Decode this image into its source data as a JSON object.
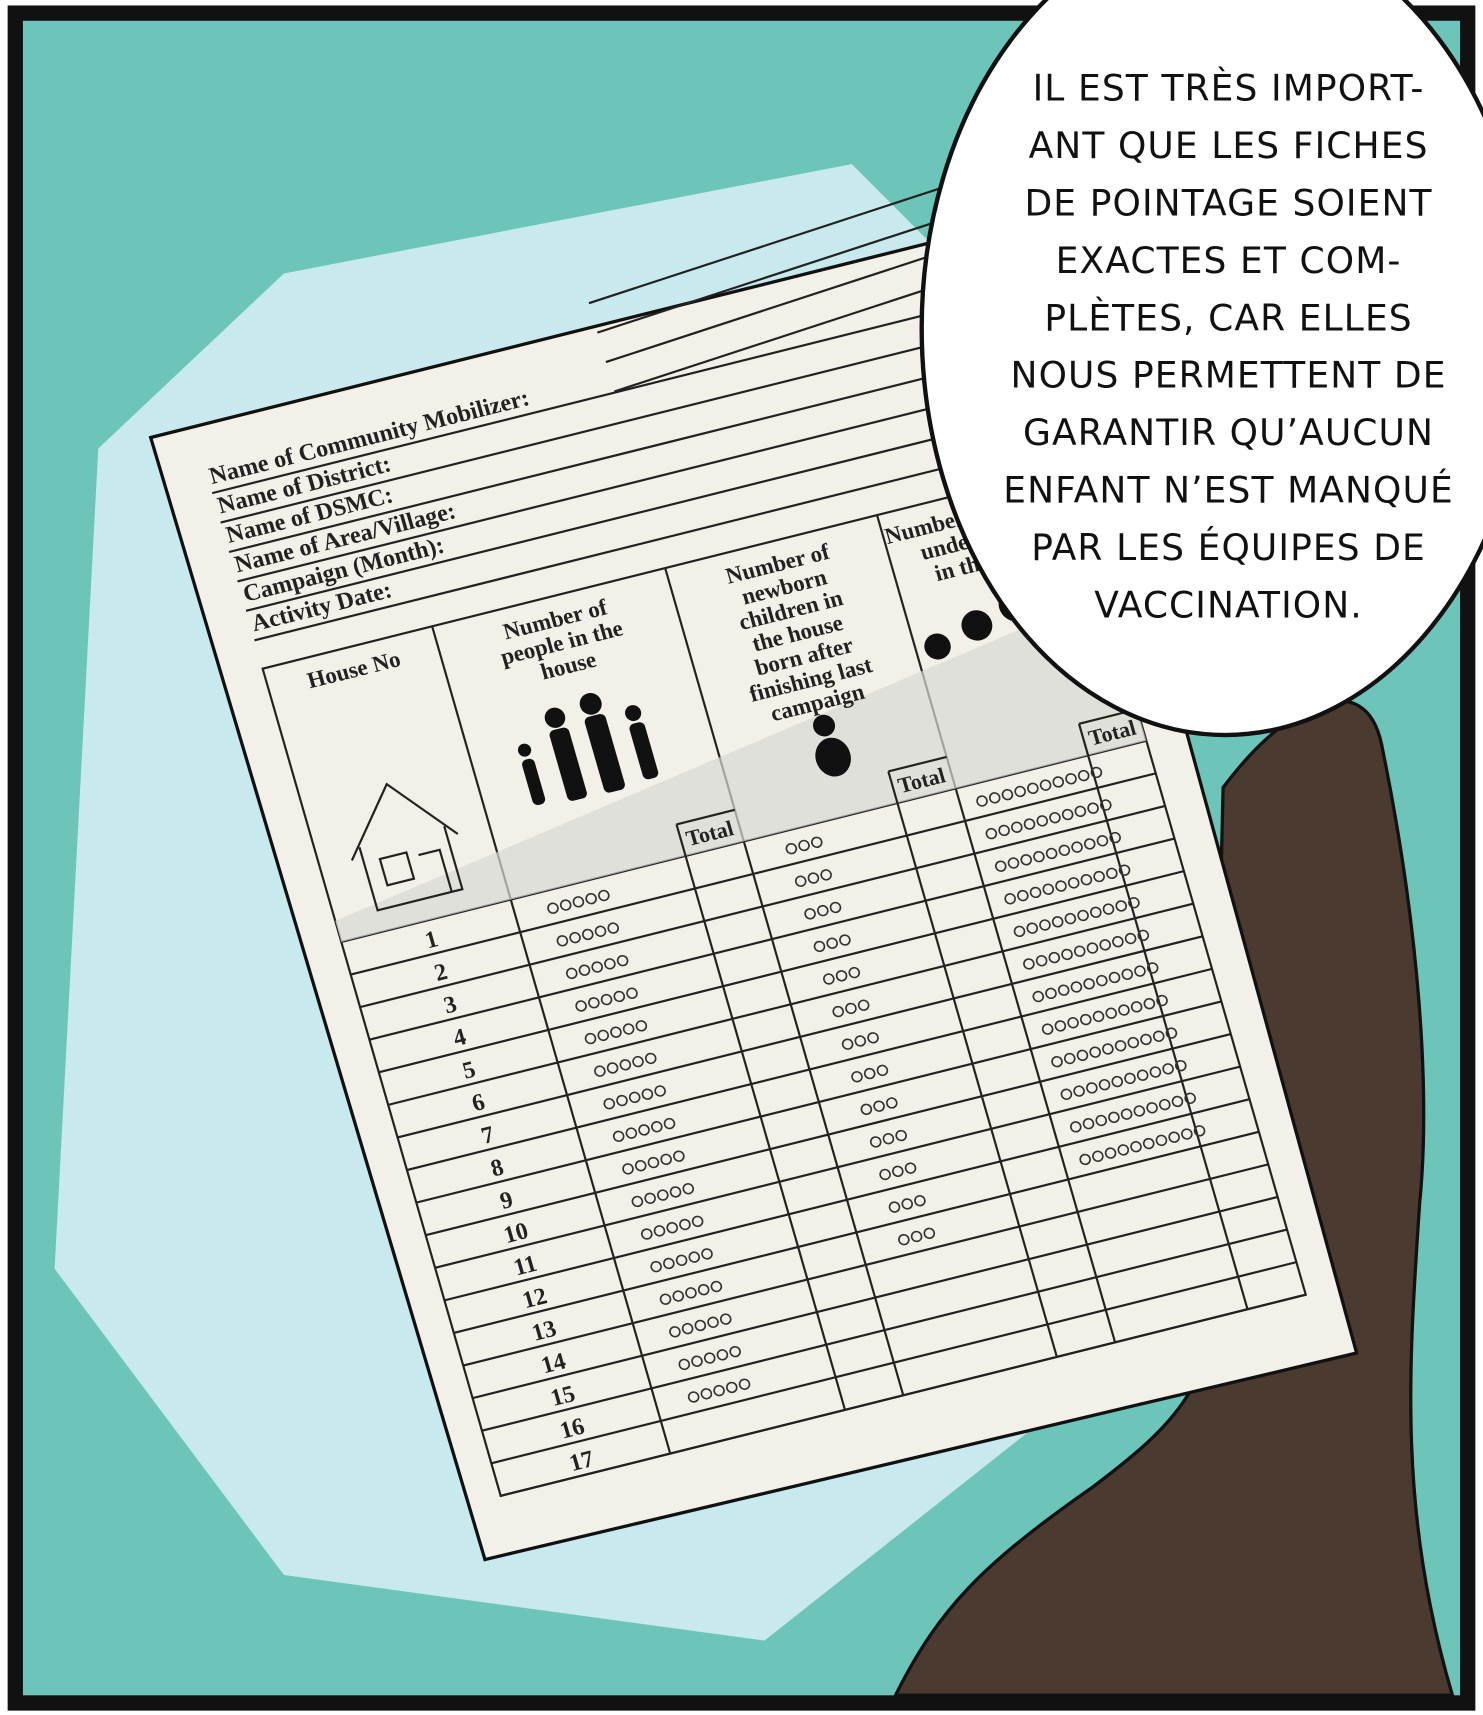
{
  "speech_bubble": {
    "lines": [
      "IL EST TRÈS IMPORT-",
      "ANT QUE LES FICHES",
      "DE POINTAGE SOIENT",
      "EXACTES ET COM-",
      "PLÈTES, CAR ELLES",
      "NOUS PERMETTENT DE",
      "GARANTIR QU’AUCUN",
      "ENFANT N’EST MANQUÉ",
      "PAR LES ÉQUIPES DE",
      "VACCINATION."
    ]
  },
  "tally_sheet": {
    "fields": [
      "Name of Community Mobilizer:",
      "Name of District:",
      "Name of DSMC:",
      "Name of Area/Village:",
      "Campaign (Month):",
      "Activity Date:"
    ],
    "columns": [
      [
        "House No"
      ],
      [
        "Number of",
        "people in the",
        "house"
      ],
      [
        "Number of",
        "newborn",
        "children in",
        "the house",
        "born after",
        "finishing last",
        "campaign"
      ],
      [
        "Number of children",
        "under 5 years",
        "in the house"
      ]
    ],
    "total_label": "Total",
    "rows": [
      "1",
      "2",
      "3",
      "4",
      "5",
      "6",
      "7",
      "8",
      "9",
      "10",
      "11",
      "12",
      "13",
      "14",
      "15",
      "16",
      "17"
    ]
  }
}
